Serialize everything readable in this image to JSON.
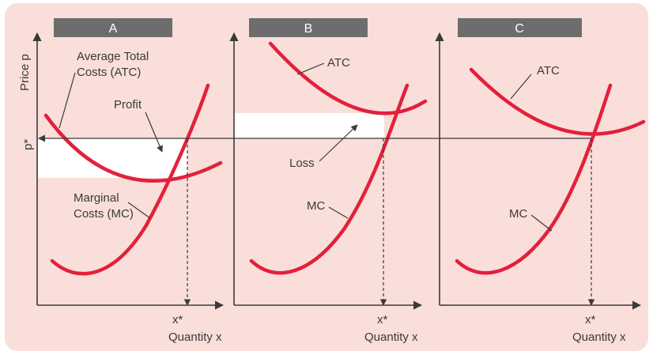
{
  "colors": {
    "background": "#f9ded9",
    "curve": "#e3203c",
    "axis": "#3a3a3a",
    "tab": "#6d6d6d",
    "area": "#ffffff"
  },
  "panels": [
    {
      "label": "A",
      "x_label": "Quantity x",
      "x_star": "x*",
      "curves": [
        {
          "name": "atc",
          "label": "Average Total\nCosts (ATC)"
        },
        {
          "name": "mc",
          "label": "Marginal\nCosts (MC)"
        }
      ],
      "area_label": "Profit"
    },
    {
      "label": "B",
      "x_label": "Quantity x",
      "x_star": "x*",
      "curves": [
        {
          "name": "atc",
          "label": "ATC"
        },
        {
          "name": "mc",
          "label": "MC"
        }
      ],
      "area_label": "Loss"
    },
    {
      "label": "C",
      "x_label": "Quantity x",
      "x_star": "x*",
      "curves": [
        {
          "name": "atc",
          "label": "ATC"
        },
        {
          "name": "mc",
          "label": "MC"
        }
      ]
    }
  ],
  "y_axis": {
    "label": "Price p",
    "p_star": "p*"
  }
}
